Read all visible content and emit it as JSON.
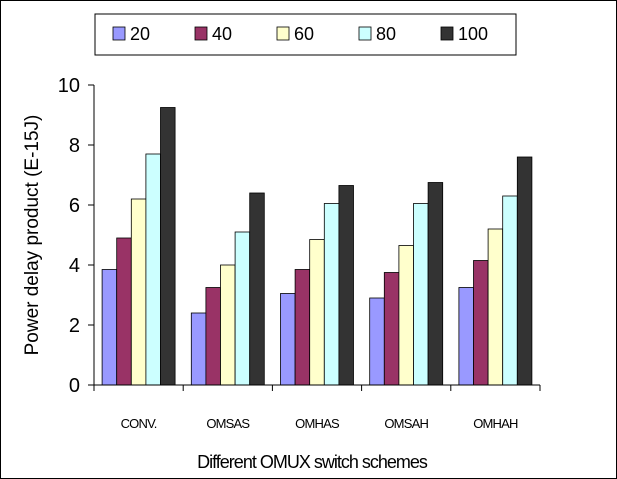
{
  "chart_data": {
    "type": "bar",
    "categories": [
      "CONV.",
      "OMSAS",
      "OMHAS",
      "OMSAH",
      "OMHAH"
    ],
    "series": [
      {
        "name": "20",
        "color": "#9999ff",
        "values": [
          3.85,
          2.4,
          3.05,
          2.9,
          3.25
        ]
      },
      {
        "name": "40",
        "color": "#993366",
        "values": [
          4.9,
          3.25,
          3.85,
          3.75,
          4.15
        ]
      },
      {
        "name": "60",
        "color": "#ffffcc",
        "values": [
          6.2,
          4.0,
          4.85,
          4.65,
          5.2
        ]
      },
      {
        "name": "80",
        "color": "#ccffff",
        "values": [
          7.7,
          5.1,
          6.05,
          6.05,
          6.3
        ]
      },
      {
        "name": "100",
        "color": "#333333",
        "values": [
          9.25,
          6.4,
          6.65,
          6.75,
          7.6
        ]
      }
    ],
    "xlabel": "Different OMUX switch schemes",
    "ylabel": "Power delay product (E-15J)",
    "ylim": [
      0,
      10
    ],
    "yticks": [
      "0",
      "2",
      "4",
      "6",
      "8",
      "10"
    ],
    "grid": false,
    "legend_position": "top"
  }
}
